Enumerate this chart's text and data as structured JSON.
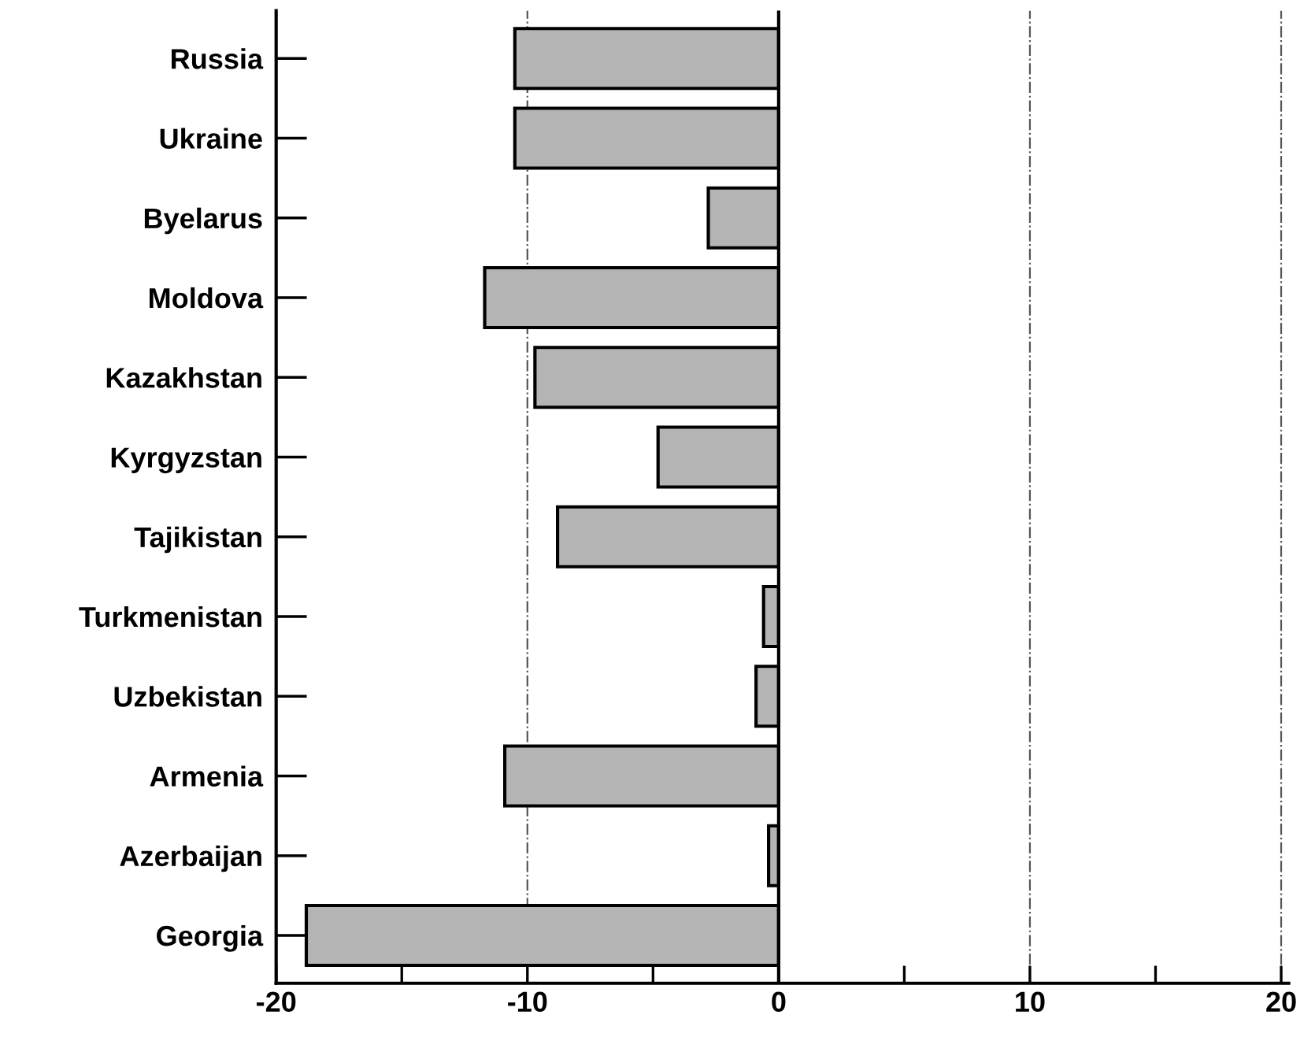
{
  "chart_data": {
    "type": "bar",
    "orientation": "horizontal",
    "categories": [
      "Russia",
      "Ukraine",
      "Byelarus",
      "Moldova",
      "Kazakhstan",
      "Kyrgyzstan",
      "Tajikistan",
      "Turkmenistan",
      "Uzbekistan",
      "Armenia",
      "Azerbaijan",
      "Georgia"
    ],
    "values": [
      -10.5,
      -10.5,
      -2.8,
      -11.7,
      -9.7,
      -4.8,
      -8.8,
      -0.6,
      -0.9,
      -10.9,
      -0.4,
      -18.8
    ],
    "color": "#b4b4b4",
    "xlim": [
      -20,
      20.3
    ],
    "xticks": [
      -20,
      {
        "value": -15,
        "label": null
      },
      -10,
      {
        "value": -5,
        "label": null
      },
      0,
      {
        "value": 5,
        "label": null
      },
      10,
      {
        "value": 15,
        "label": null
      },
      20
    ],
    "grid": "x",
    "line_style": "dashed",
    "ref_lines": [
      {
        "axis": "x",
        "value": 0
      }
    ]
  }
}
